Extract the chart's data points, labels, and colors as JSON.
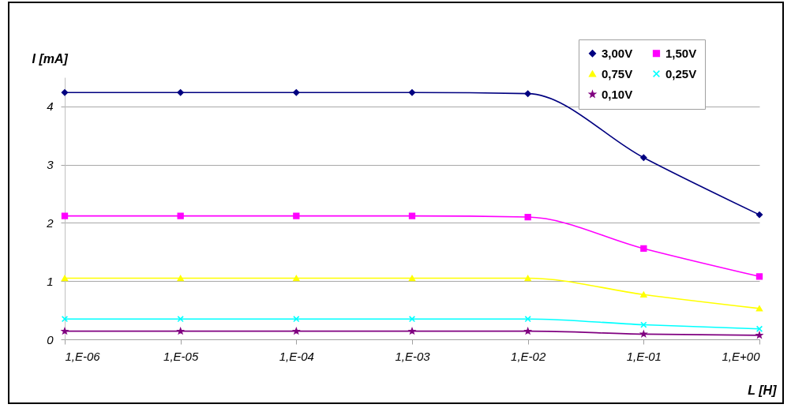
{
  "chart_data": {
    "type": "line",
    "xlabel": "L [H]",
    "ylabel": "I [mA]",
    "categories": [
      "1,E-06",
      "1,E-05",
      "1,E-04",
      "1,E-03",
      "1,E-02",
      "1,E-01",
      "1,E+00"
    ],
    "ylim": [
      0,
      4.5
    ],
    "yticks": [
      0,
      1,
      2,
      3,
      4
    ],
    "grid": "y",
    "legend": "top right",
    "line_style": "solid",
    "series": [
      {
        "name": "3,00V",
        "color": "#000080",
        "marker": "diamond",
        "values": [
          4.24,
          4.24,
          4.24,
          4.24,
          4.22,
          3.12,
          2.14
        ]
      },
      {
        "name": "1,50V",
        "color": "#ff00ff",
        "marker": "square",
        "values": [
          2.12,
          2.12,
          2.12,
          2.12,
          2.1,
          1.56,
          1.08
        ]
      },
      {
        "name": "0,75V",
        "color": "#ffff00",
        "marker": "triangle",
        "values": [
          1.05,
          1.05,
          1.05,
          1.05,
          1.05,
          0.77,
          0.53
        ]
      },
      {
        "name": "0,25V",
        "color": "#00ffff",
        "marker": "cross",
        "values": [
          0.35,
          0.35,
          0.35,
          0.35,
          0.35,
          0.25,
          0.18
        ]
      },
      {
        "name": "0,10V",
        "color": "#800080",
        "marker": "star",
        "values": [
          0.14,
          0.14,
          0.14,
          0.14,
          0.14,
          0.09,
          0.07
        ]
      }
    ]
  }
}
